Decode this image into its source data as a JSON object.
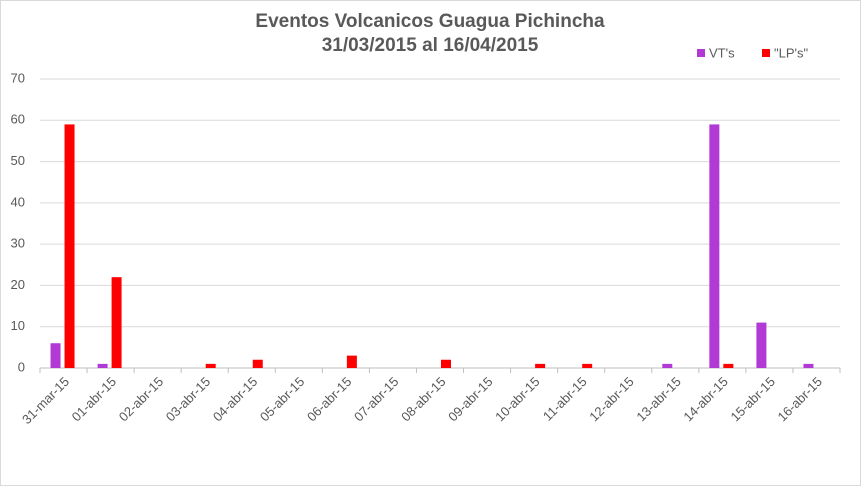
{
  "chart_data": {
    "type": "bar",
    "title": "Eventos Volcanicos  Guagua Pichincha",
    "subtitle": "31/03/2015 al 16/04/2015",
    "categories": [
      "31-mar-15",
      "01-abr-15",
      "02-abr-15",
      "03-abr-15",
      "04-abr-15",
      "05-abr-15",
      "06-abr-15",
      "07-abr-15",
      "08-abr-15",
      "09-abr-15",
      "10-abr-15",
      "11-abr-15",
      "12-abr-15",
      "13-abr-15",
      "14-abr-15",
      "15-abr-15",
      "16-abr-15"
    ],
    "series": [
      {
        "name": "VT's",
        "color": "#b13ad6",
        "values": [
          6,
          1,
          0,
          0,
          0,
          0,
          0,
          0,
          0,
          0,
          0,
          0,
          0,
          1,
          59,
          11,
          1
        ]
      },
      {
        "name": "\"LP's\"",
        "color": "#ff0000",
        "values": [
          59,
          22,
          0,
          1,
          2,
          0,
          3,
          0,
          2,
          0,
          1,
          1,
          0,
          0,
          1,
          0,
          0
        ]
      }
    ],
    "ylim": [
      0,
      70
    ],
    "yticks": [
      0,
      10,
      20,
      30,
      40,
      50,
      60,
      70
    ],
    "grid": true,
    "legend": "top-right"
  }
}
